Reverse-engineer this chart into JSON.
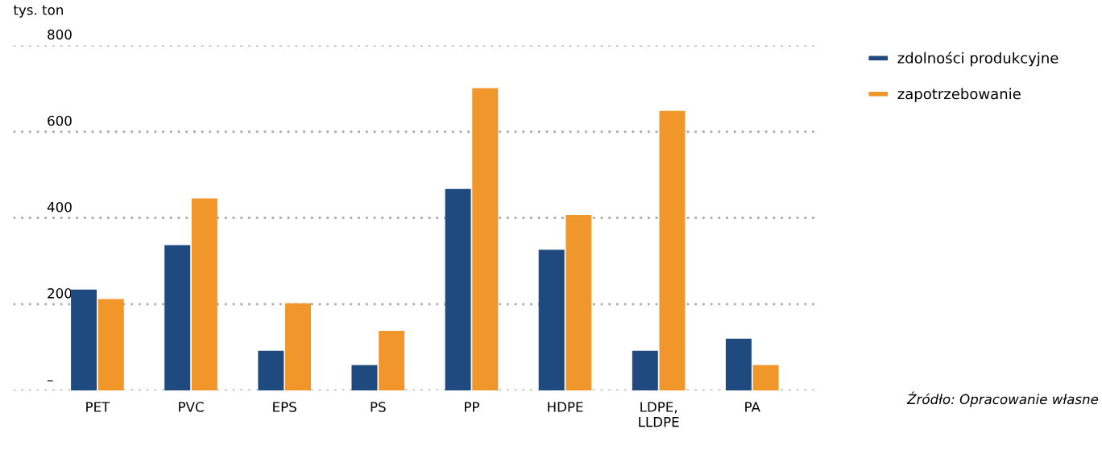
{
  "chart_data": {
    "type": "bar",
    "ylabel": "tys. ton",
    "categories": [
      "PET",
      "PVC",
      "EPS",
      "PS",
      "PP",
      "HDPE",
      "LDPE,\nLLDPE",
      "PA"
    ],
    "series": [
      {
        "name": "zdolności produkcyjne",
        "color": "#1f4a80",
        "values": [
          234,
          337,
          92,
          59,
          467,
          326,
          92,
          120
        ]
      },
      {
        "name": "zapotrzebowanie",
        "color": "#f0962a",
        "values": [
          212,
          445,
          202,
          138,
          701,
          407,
          648,
          59
        ]
      }
    ],
    "ylim": [
      0,
      800
    ],
    "yticks": [
      {
        "value": 0,
        "label": "–"
      },
      200,
      400,
      600,
      800
    ],
    "grid": "y",
    "legend": "top right",
    "annotations": [
      "Źródło: Opracowanie własne"
    ]
  }
}
